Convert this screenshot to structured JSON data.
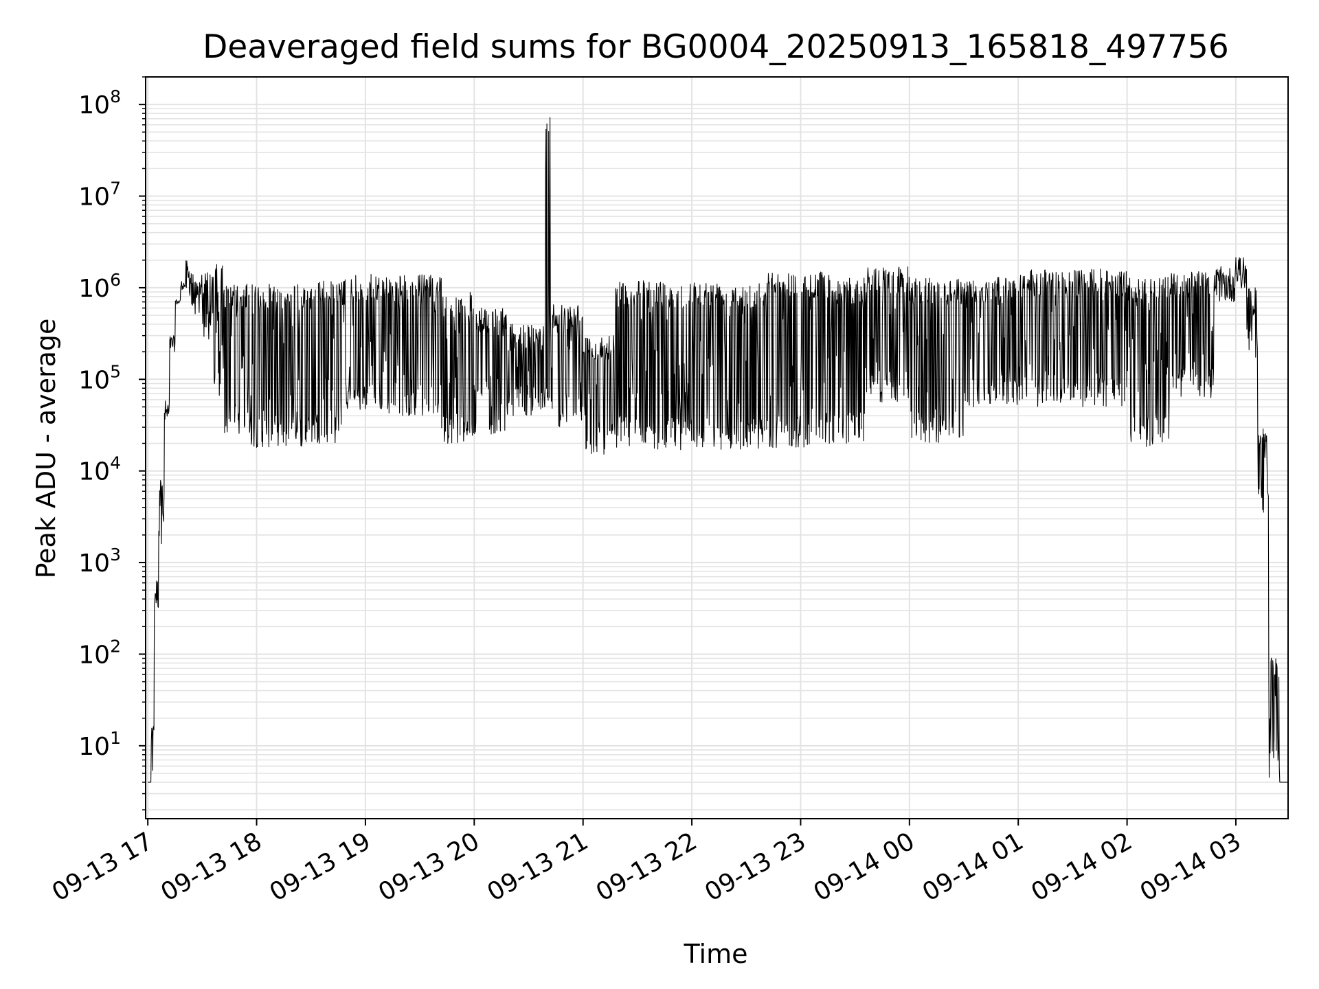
{
  "chart_data": {
    "type": "line",
    "title": "Deaveraged field sums for BG0004_20250913_165818_497756",
    "xlabel": "Time",
    "ylabel": "Peak ADU - average",
    "yscale": "log",
    "ylim": [
      1.6,
      200000000
    ],
    "xlim_hours": [
      -0.02,
      10.48
    ],
    "grid": true,
    "line_color": "#000000",
    "x_tick_labels": [
      "09-13 17",
      "09-13 18",
      "09-13 19",
      "09-13 20",
      "09-13 21",
      "09-13 22",
      "09-13 23",
      "09-14 00",
      "09-14 01",
      "09-14 02",
      "09-14 03"
    ],
    "x_tick_hours": [
      0,
      1,
      2,
      3,
      4,
      5,
      6,
      7,
      8,
      9,
      10
    ],
    "y_ticks": [
      {
        "value": 10,
        "base": "10",
        "exp": "1"
      },
      {
        "value": 100,
        "base": "10",
        "exp": "2"
      },
      {
        "value": 1000,
        "base": "10",
        "exp": "3"
      },
      {
        "value": 10000,
        "base": "10",
        "exp": "4"
      },
      {
        "value": 100000,
        "base": "10",
        "exp": "5"
      },
      {
        "value": 1000000,
        "base": "10",
        "exp": "6"
      },
      {
        "value": 10000000,
        "base": "10",
        "exp": "7"
      },
      {
        "value": 100000000,
        "base": "10",
        "exp": "8"
      }
    ],
    "series": [
      {
        "name": "field sums",
        "segments": [
          {
            "h0": 0.0,
            "h1": 0.03,
            "upper": 4,
            "lower": 4
          },
          {
            "h0": 0.03,
            "h1": 0.06,
            "upper": 20,
            "lower": 4
          },
          {
            "h0": 0.06,
            "h1": 0.1,
            "upper": 700,
            "lower": 300
          },
          {
            "h0": 0.1,
            "h1": 0.15,
            "upper": 8000,
            "lower": 1600
          },
          {
            "h0": 0.15,
            "h1": 0.2,
            "upper": 60000,
            "lower": 30000
          },
          {
            "h0": 0.2,
            "h1": 0.25,
            "upper": 300000,
            "lower": 200000
          },
          {
            "h0": 0.25,
            "h1": 0.3,
            "upper": 750000,
            "lower": 650000
          },
          {
            "h0": 0.3,
            "h1": 0.35,
            "upper": 1200000,
            "lower": 950000
          },
          {
            "h0": 0.35,
            "h1": 0.4,
            "upper": 2000000,
            "lower": 800000
          },
          {
            "h0": 0.4,
            "h1": 0.5,
            "upper": 1500000,
            "lower": 500000
          },
          {
            "h0": 0.5,
            "h1": 0.6,
            "upper": 1500000,
            "lower": 250000
          },
          {
            "h0": 0.6,
            "h1": 0.7,
            "upper": 1800000,
            "lower": 60000
          },
          {
            "h0": 0.7,
            "h1": 0.85,
            "upper": 1100000,
            "lower": 25000
          },
          {
            "h0": 0.85,
            "h1": 1.5,
            "upper": 1100000,
            "lower": 18000
          },
          {
            "h0": 1.5,
            "h1": 1.8,
            "upper": 1200000,
            "lower": 20000
          },
          {
            "h0": 1.8,
            "h1": 2.2,
            "upper": 1400000,
            "lower": 45000
          },
          {
            "h0": 2.2,
            "h1": 2.7,
            "upper": 1400000,
            "lower": 40000
          },
          {
            "h0": 2.7,
            "h1": 3.0,
            "upper": 900000,
            "lower": 20000
          },
          {
            "h0": 3.0,
            "h1": 3.3,
            "upper": 600000,
            "lower": 25000
          },
          {
            "h0": 3.3,
            "h1": 3.65,
            "upper": 400000,
            "lower": 40000
          },
          {
            "h0": 3.65,
            "h1": 3.7,
            "upper": 85000000,
            "lower": 40000
          },
          {
            "h0": 3.7,
            "h1": 4.0,
            "upper": 700000,
            "lower": 30000
          },
          {
            "h0": 4.0,
            "h1": 4.3,
            "upper": 300000,
            "lower": 15000
          },
          {
            "h0": 4.3,
            "h1": 4.6,
            "upper": 1200000,
            "lower": 18000
          },
          {
            "h0": 4.6,
            "h1": 5.7,
            "upper": 1200000,
            "lower": 17000
          },
          {
            "h0": 5.7,
            "h1": 6.3,
            "upper": 1500000,
            "lower": 18000
          },
          {
            "h0": 6.3,
            "h1": 6.6,
            "upper": 1300000,
            "lower": 20000
          },
          {
            "h0": 6.6,
            "h1": 7.0,
            "upper": 1700000,
            "lower": 55000
          },
          {
            "h0": 7.0,
            "h1": 7.5,
            "upper": 1300000,
            "lower": 20000
          },
          {
            "h0": 7.5,
            "h1": 8.0,
            "upper": 1300000,
            "lower": 50000
          },
          {
            "h0": 8.0,
            "h1": 9.0,
            "upper": 1600000,
            "lower": 50000
          },
          {
            "h0": 9.0,
            "h1": 9.4,
            "upper": 1300000,
            "lower": 18000
          },
          {
            "h0": 9.4,
            "h1": 9.8,
            "upper": 1500000,
            "lower": 60000
          },
          {
            "h0": 9.8,
            "h1": 10.0,
            "upper": 1700000,
            "lower": 700000
          },
          {
            "h0": 10.0,
            "h1": 10.1,
            "upper": 2500000,
            "lower": 900000
          },
          {
            "h0": 10.1,
            "h1": 10.2,
            "upper": 1000000,
            "lower": 150000
          },
          {
            "h0": 10.2,
            "h1": 10.3,
            "upper": 30000,
            "lower": 3000
          },
          {
            "h0": 10.3,
            "h1": 10.4,
            "upper": 100,
            "lower": 4
          },
          {
            "h0": 10.4,
            "h1": 10.48,
            "upper": 4,
            "lower": 4
          }
        ]
      }
    ]
  }
}
